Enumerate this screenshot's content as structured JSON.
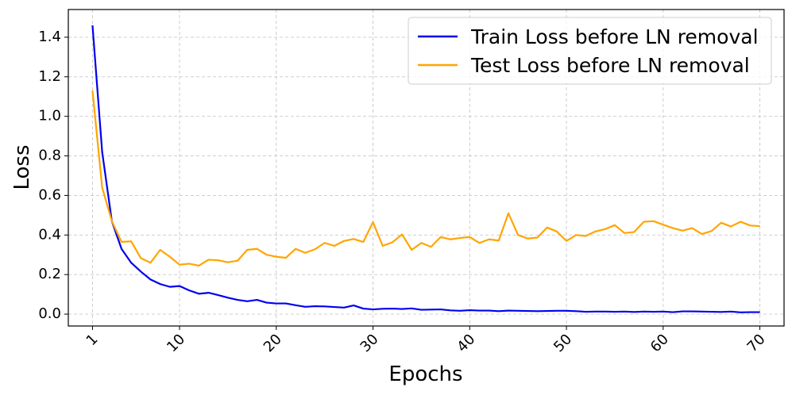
{
  "chart_data": {
    "type": "line",
    "title": "",
    "xlabel": "Epochs",
    "ylabel": "Loss",
    "xlim": [
      -1.5,
      72.5
    ],
    "ylim": [
      -0.06,
      1.54
    ],
    "x_ticks": [
      1,
      10,
      20,
      30,
      40,
      50,
      60,
      70
    ],
    "y_ticks": [
      0.0,
      0.2,
      0.4,
      0.6,
      0.8,
      1.0,
      1.2,
      1.4
    ],
    "y_tick_labels": [
      "0.0",
      "0.2",
      "0.4",
      "0.6",
      "0.8",
      "1.0",
      "1.2",
      "1.4"
    ],
    "grid": true,
    "legend_position": "top-right",
    "x": [
      1,
      2,
      3,
      4,
      5,
      6,
      7,
      8,
      9,
      10,
      11,
      12,
      13,
      14,
      15,
      16,
      17,
      18,
      19,
      20,
      21,
      22,
      23,
      24,
      25,
      26,
      27,
      28,
      29,
      30,
      31,
      32,
      33,
      34,
      35,
      36,
      37,
      38,
      39,
      40,
      41,
      42,
      43,
      44,
      45,
      46,
      47,
      48,
      49,
      50,
      51,
      52,
      53,
      54,
      55,
      56,
      57,
      58,
      59,
      60,
      61,
      62,
      63,
      64,
      65,
      66,
      67,
      68,
      69,
      70
    ],
    "series": [
      {
        "name": "Train Loss before LN removal",
        "color": "#0000ee",
        "values": [
          1.46,
          0.82,
          0.47,
          0.33,
          0.26,
          0.215,
          0.175,
          0.152,
          0.138,
          0.142,
          0.12,
          0.103,
          0.108,
          0.096,
          0.083,
          0.072,
          0.065,
          0.072,
          0.058,
          0.054,
          0.054,
          0.045,
          0.037,
          0.04,
          0.039,
          0.036,
          0.033,
          0.044,
          0.028,
          0.024,
          0.027,
          0.028,
          0.026,
          0.029,
          0.022,
          0.023,
          0.024,
          0.019,
          0.017,
          0.02,
          0.018,
          0.018,
          0.015,
          0.018,
          0.017,
          0.016,
          0.015,
          0.016,
          0.017,
          0.017,
          0.015,
          0.012,
          0.013,
          0.013,
          0.012,
          0.013,
          0.011,
          0.013,
          0.012,
          0.013,
          0.01,
          0.014,
          0.014,
          0.013,
          0.012,
          0.011,
          0.013,
          0.009,
          0.01,
          0.01
        ]
      },
      {
        "name": "Test Loss before LN removal",
        "color": "#ffa500",
        "values": [
          1.13,
          0.64,
          0.47,
          0.365,
          0.368,
          0.283,
          0.26,
          0.325,
          0.29,
          0.25,
          0.255,
          0.245,
          0.275,
          0.272,
          0.262,
          0.27,
          0.325,
          0.33,
          0.3,
          0.29,
          0.285,
          0.33,
          0.31,
          0.328,
          0.36,
          0.345,
          0.37,
          0.38,
          0.365,
          0.465,
          0.345,
          0.363,
          0.403,
          0.325,
          0.36,
          0.34,
          0.39,
          0.378,
          0.385,
          0.39,
          0.36,
          0.378,
          0.372,
          0.51,
          0.4,
          0.382,
          0.387,
          0.438,
          0.418,
          0.37,
          0.4,
          0.395,
          0.418,
          0.43,
          0.45,
          0.41,
          0.415,
          0.467,
          0.47,
          0.452,
          0.435,
          0.422,
          0.435,
          0.405,
          0.42,
          0.462,
          0.443,
          0.467,
          0.448,
          0.445
        ]
      }
    ]
  }
}
